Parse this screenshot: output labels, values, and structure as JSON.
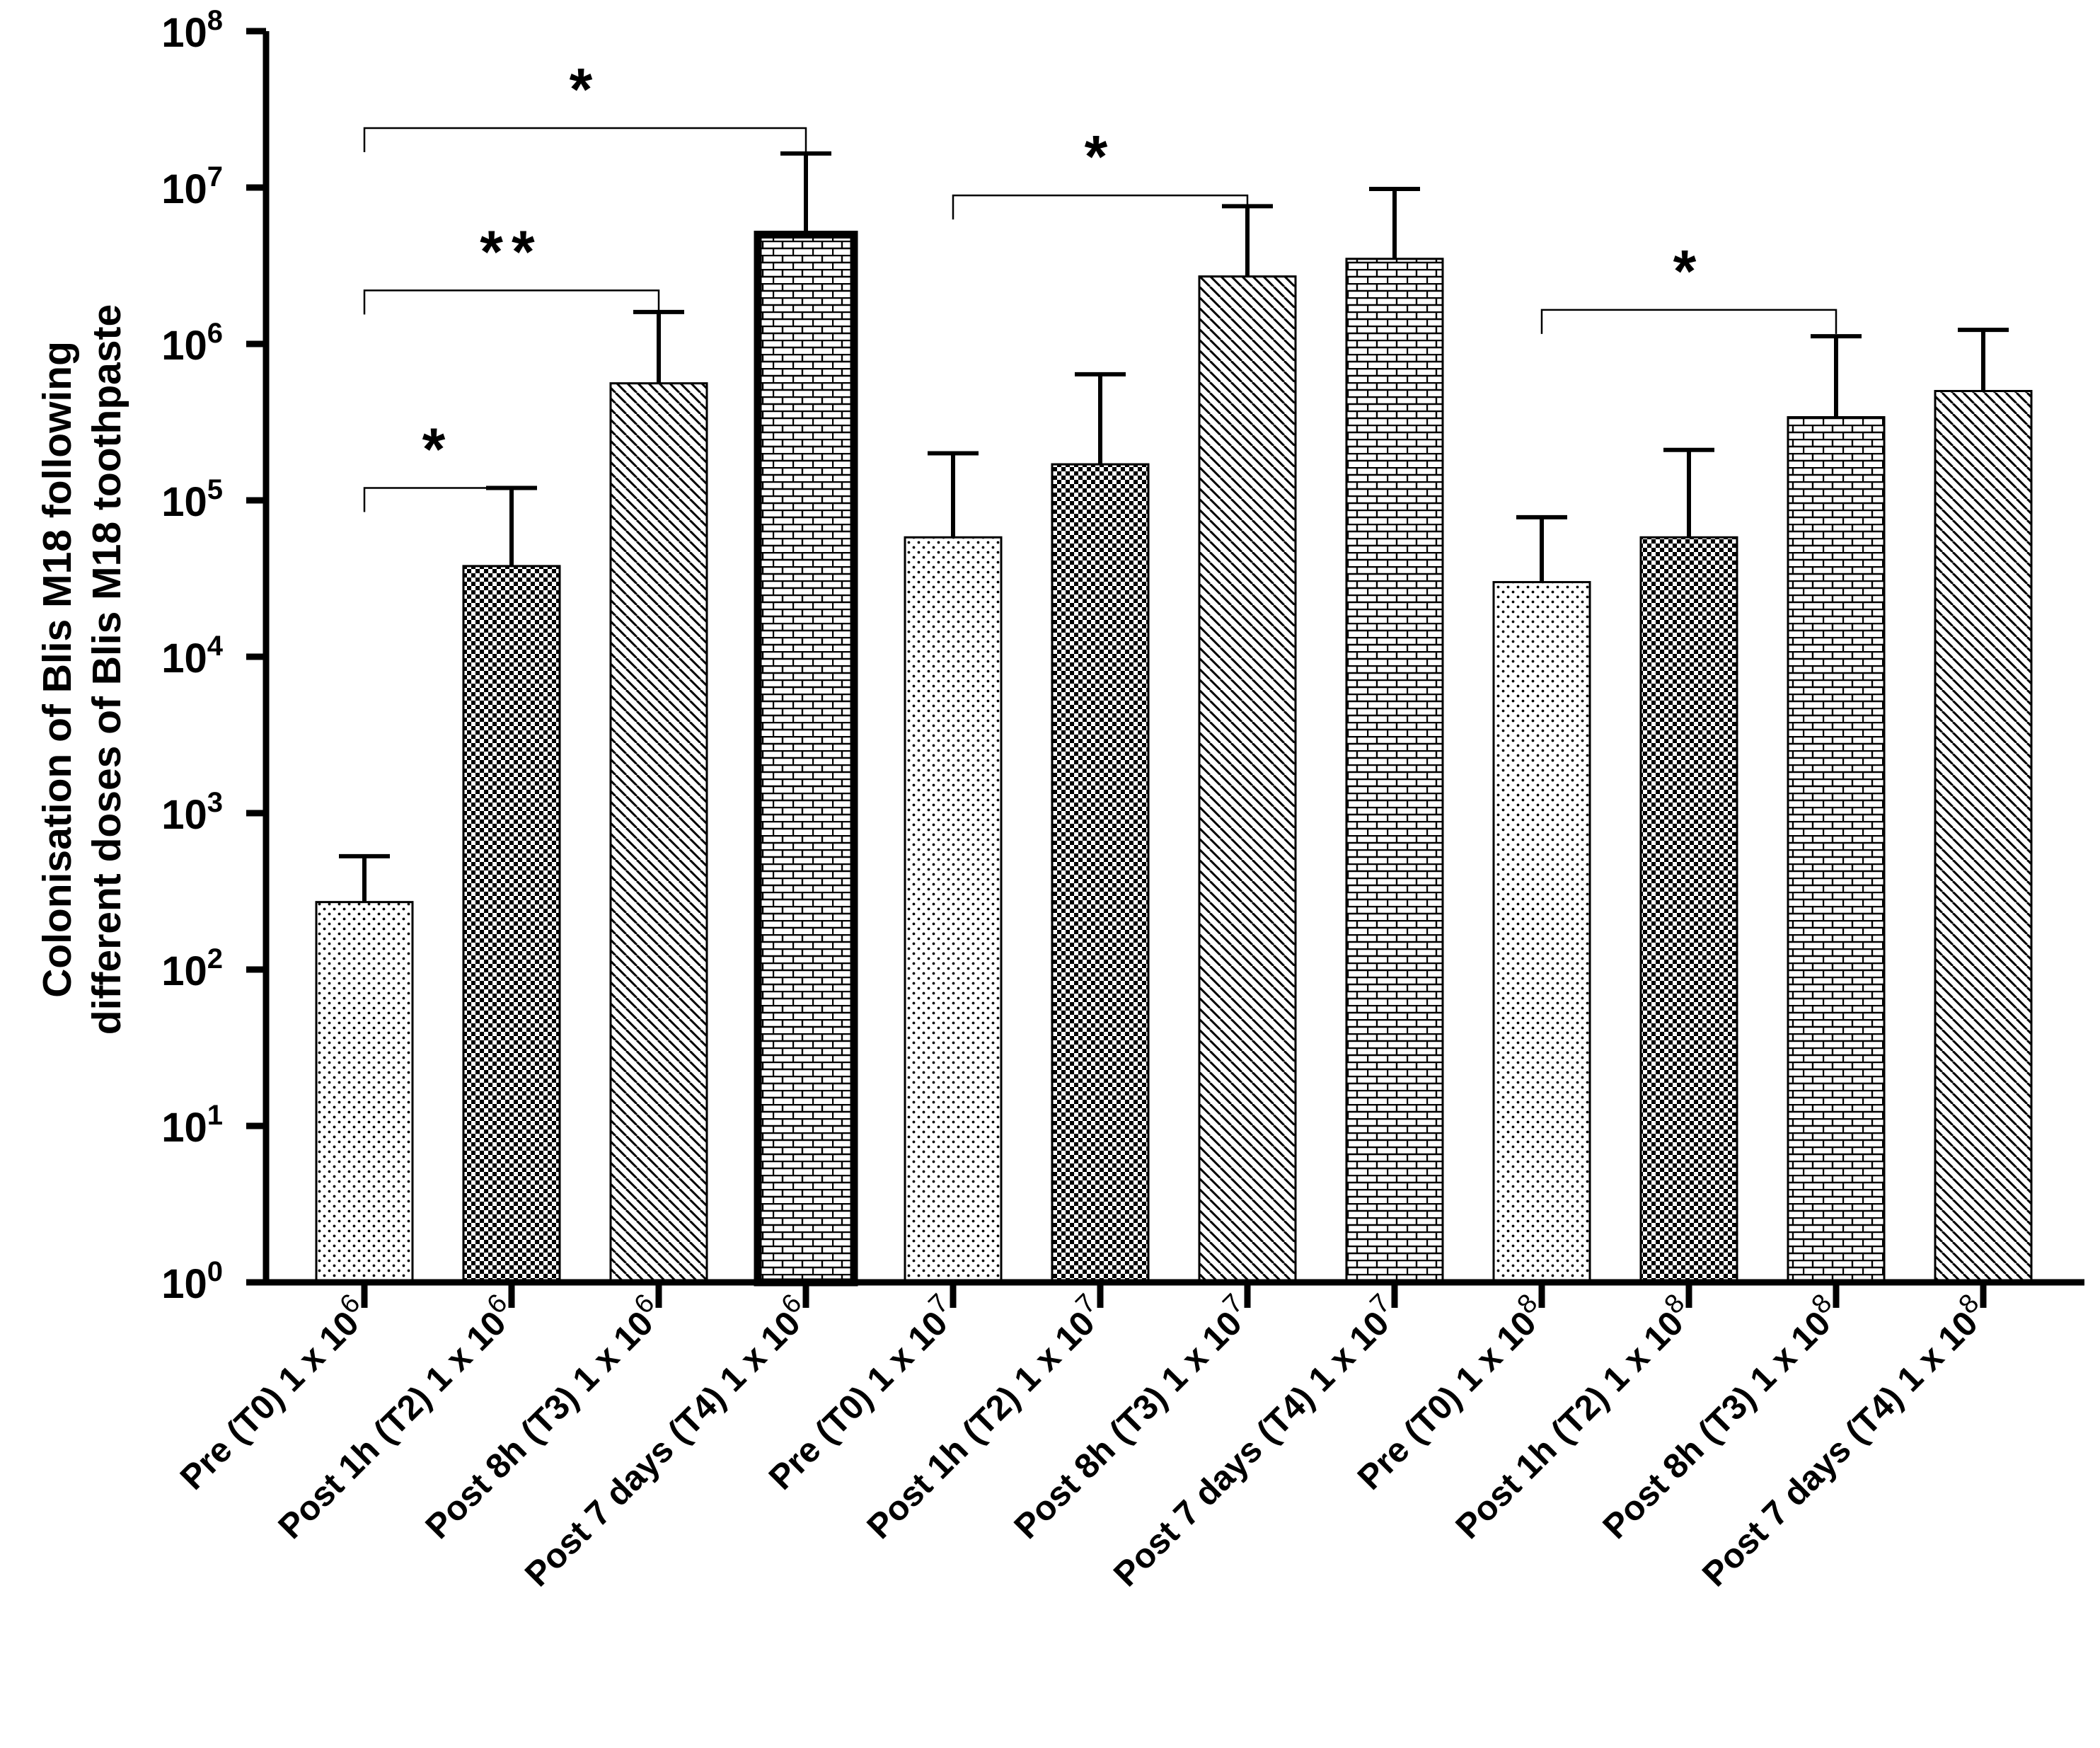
{
  "chart_data": {
    "type": "bar",
    "title": "",
    "xlabel": "",
    "ylabel_lines": [
      "Colonisation of Blis M18 following",
      "different doses of Blis M18 toothpaste"
    ],
    "yscale": "log10",
    "ylim": [
      1,
      100000000
    ],
    "y_ticks": [
      {
        "base": "10",
        "exp": "0"
      },
      {
        "base": "10",
        "exp": "1"
      },
      {
        "base": "10",
        "exp": "2"
      },
      {
        "base": "10",
        "exp": "3"
      },
      {
        "base": "10",
        "exp": "4"
      },
      {
        "base": "10",
        "exp": "5"
      },
      {
        "base": "10",
        "exp": "6"
      },
      {
        "base": "10",
        "exp": "7"
      },
      {
        "base": "10",
        "exp": "8"
      }
    ],
    "bars": [
      {
        "label": "Pre (T0) 1 x 10",
        "exp": "6",
        "value": 270,
        "error_upper": 530,
        "pattern": "dots",
        "bold_outline": false
      },
      {
        "label": "Post 1h (T2) 1 x 10",
        "exp": "6",
        "value": 38000,
        "error_upper": 120000,
        "pattern": "check",
        "bold_outline": false
      },
      {
        "label": "Post 8h (T3) 1 x 10",
        "exp": "6",
        "value": 560000,
        "error_upper": 1600000,
        "pattern": "diagonal",
        "bold_outline": false
      },
      {
        "label": "Post 7 days (T4) 1 x 10",
        "exp": "6",
        "value": 5000000,
        "error_upper": 16500000,
        "pattern": "brick",
        "bold_outline": true
      },
      {
        "label": "Pre (T0) 1 x 10",
        "exp": "7",
        "value": 58000,
        "error_upper": 200000,
        "pattern": "dots",
        "bold_outline": false
      },
      {
        "label": "Post 1h (T2) 1 x 10",
        "exp": "7",
        "value": 170000,
        "error_upper": 640000,
        "pattern": "check",
        "bold_outline": false
      },
      {
        "label": "Post 8h (T3) 1 x 10",
        "exp": "7",
        "value": 2700000,
        "error_upper": 7600000,
        "pattern": "diagonal",
        "bold_outline": false
      },
      {
        "label": "Post 7 days (T4) 1 x 10",
        "exp": "7",
        "value": 3500000,
        "error_upper": 9800000,
        "pattern": "brick",
        "bold_outline": false
      },
      {
        "label": "Pre (T0) 1 x 10",
        "exp": "8",
        "value": 30000,
        "error_upper": 78000,
        "pattern": "dots",
        "bold_outline": false
      },
      {
        "label": "Post 1h (T2) 1 x 10",
        "exp": "8",
        "value": 58000,
        "error_upper": 210000,
        "pattern": "check",
        "bold_outline": false
      },
      {
        "label": "Post 8h (T3) 1 x 10",
        "exp": "8",
        "value": 340000,
        "error_upper": 1120000,
        "pattern": "brick",
        "bold_outline": false
      },
      {
        "label": "Post 7 days (T4) 1 x 10",
        "exp": "8",
        "value": 500000,
        "error_upper": 1230000,
        "pattern": "diagonal",
        "bold_outline": false
      }
    ],
    "significance": [
      {
        "from": 0,
        "to": 1,
        "label": "*",
        "y": 120000
      },
      {
        "from": 0,
        "to": 2,
        "label": "**",
        "y": 2200000
      },
      {
        "from": 0,
        "to": 3,
        "label": "*",
        "y": 24000000
      },
      {
        "from": 4,
        "to": 6,
        "label": "*",
        "y": 8900000
      },
      {
        "from": 8,
        "to": 10,
        "label": "*",
        "y": 1650000
      }
    ],
    "legend": "none",
    "grid": false
  }
}
